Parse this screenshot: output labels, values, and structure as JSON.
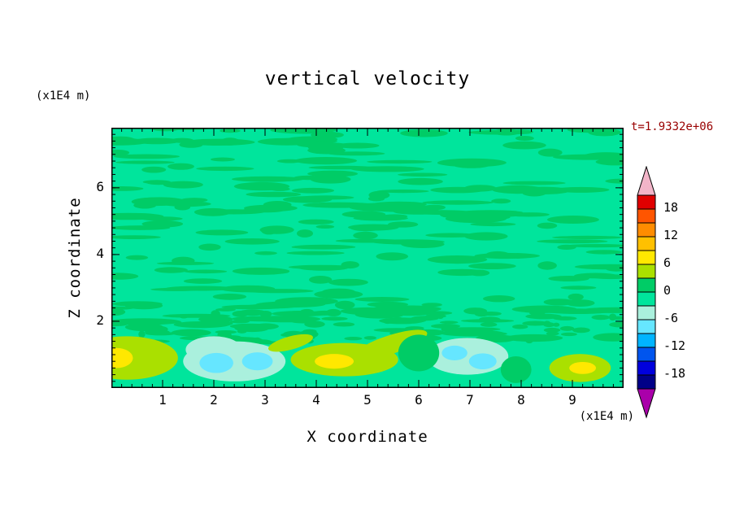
{
  "title": "vertical velocity",
  "time_label": "t=1.9332e+06",
  "time_color": "#990000",
  "axes": {
    "x_label": "X coordinate",
    "y_label": "Z coordinate",
    "x_unit": "(x1E4 m)",
    "y_unit": "(x1E4 m)",
    "x_ticks": [
      1,
      2,
      3,
      4,
      5,
      6,
      7,
      8,
      9
    ],
    "y_ticks": [
      2,
      4,
      6
    ],
    "x_minor_step": 0.2,
    "y_minor_step": 0.2
  },
  "colorbar": {
    "labels": [
      "18",
      "12",
      "6",
      "0",
      "-6",
      "-12",
      "-18"
    ],
    "band_colors": [
      "#e00000",
      "#ff5500",
      "#ff8c00",
      "#ffc000",
      "#ffe800",
      "#aae000",
      "#00cc66",
      "#00e59c",
      "#aaf0dd",
      "#66e6ff",
      "#00b4ff",
      "#0055ee",
      "#0000dd",
      "#000088"
    ],
    "arrow_top_color": "#f2b4c8",
    "arrow_bottom_color": "#aa00aa"
  },
  "chart_data": {
    "type": "filled-contour",
    "title": "vertical velocity",
    "xlabel": "X coordinate (x1E4 m)",
    "ylabel": "Z coordinate (x1E4 m)",
    "xlim": [
      0,
      10
    ],
    "ylim": [
      0,
      7.8
    ],
    "time_annotation": "t=1.9332e+06",
    "contour_levels": [
      -21,
      -18,
      -15,
      -12,
      -9,
      -6,
      -3,
      0,
      3,
      6,
      9,
      12,
      15,
      18,
      21
    ],
    "level_colors_top_to_bottom": [
      "#e00000",
      "#ff5500",
      "#ff8c00",
      "#ffc000",
      "#ffe800",
      "#aae000",
      "#00cc66",
      "#00e59c",
      "#aaf0dd",
      "#66e6ff",
      "#00b4ff",
      "#0055ee",
      "#0000dd",
      "#000088"
    ],
    "background_color": "#00e59c",
    "background_band": "-3 to 0",
    "speckle_color": "#00cc66",
    "speckle_band": "0 to 3",
    "texture": [
      {
        "seed": 11,
        "count": 235,
        "x": [
          0,
          10
        ],
        "z": [
          1.45,
          7.8
        ],
        "rx": [
          0.15,
          0.72
        ],
        "ry": [
          0.05,
          0.13
        ]
      },
      {
        "seed": 29,
        "count": 80,
        "x": [
          0,
          10
        ],
        "z": [
          1.35,
          2.35
        ],
        "rx": [
          0.06,
          0.28
        ],
        "ry": [
          0.04,
          0.11
        ]
      }
    ],
    "features": [
      {
        "name": "downdraft-pale",
        "x": 2.4,
        "z": 0.8,
        "rx": 1.0,
        "ry": 0.6,
        "color": "#aaf0dd",
        "band": "-3 to -6"
      },
      {
        "name": "downdraft-pale",
        "x": 2.0,
        "z": 1.15,
        "rx": 0.55,
        "ry": 0.4,
        "color": "#aaf0dd",
        "band": "-3 to -6"
      },
      {
        "name": "downdraft-pale",
        "x": 6.95,
        "z": 0.95,
        "rx": 0.8,
        "ry": 0.55,
        "color": "#aaf0dd",
        "band": "-3 to -6"
      },
      {
        "name": "updraft-weak",
        "x": 0.3,
        "z": 0.9,
        "rx": 1.0,
        "ry": 0.65,
        "color": "#aae000",
        "band": "3 to 6"
      },
      {
        "name": "updraft-weak",
        "x": 4.55,
        "z": 0.85,
        "rx": 1.05,
        "ry": 0.5,
        "color": "#aae000",
        "band": "3 to 6"
      },
      {
        "name": "updraft-weak",
        "x": 5.45,
        "z": 1.3,
        "rx": 0.75,
        "ry": 0.28,
        "rot": -18,
        "color": "#aae000",
        "band": "3 to 6"
      },
      {
        "name": "updraft-weak",
        "x": 3.5,
        "z": 1.35,
        "rx": 0.45,
        "ry": 0.2,
        "rot": -15,
        "color": "#aae000",
        "band": "3 to 6"
      },
      {
        "name": "updraft-weak",
        "x": 9.15,
        "z": 0.6,
        "rx": 0.6,
        "ry": 0.42,
        "color": "#aae000",
        "band": "3 to 6"
      },
      {
        "name": "downdraft-core",
        "x": 2.05,
        "z": 0.75,
        "rx": 0.33,
        "ry": 0.3,
        "color": "#66e6ff",
        "band": "-6 to -9"
      },
      {
        "name": "downdraft-core",
        "x": 2.85,
        "z": 0.8,
        "rx": 0.3,
        "ry": 0.27,
        "color": "#66e6ff",
        "band": "-6 to -9"
      },
      {
        "name": "downdraft-core",
        "x": 6.7,
        "z": 1.05,
        "rx": 0.25,
        "ry": 0.22,
        "color": "#66e6ff",
        "band": "-6 to -9"
      },
      {
        "name": "downdraft-core",
        "x": 7.25,
        "z": 0.8,
        "rx": 0.27,
        "ry": 0.24,
        "color": "#66e6ff",
        "band": "-6 to -9"
      },
      {
        "name": "updraft-core",
        "x": 0.1,
        "z": 0.9,
        "rx": 0.32,
        "ry": 0.3,
        "color": "#ffe800",
        "band": "6 to 9"
      },
      {
        "name": "updraft-core",
        "x": 4.35,
        "z": 0.8,
        "rx": 0.38,
        "ry": 0.22,
        "color": "#ffe800",
        "band": "6 to 9"
      },
      {
        "name": "updraft-core",
        "x": 9.2,
        "z": 0.6,
        "rx": 0.26,
        "ry": 0.18,
        "color": "#ffe800",
        "band": "6 to 9"
      },
      {
        "name": "speckle-blob",
        "x": 6.0,
        "z": 1.05,
        "rx": 0.4,
        "ry": 0.55,
        "color": "#00cc66",
        "band": "0 to 3"
      },
      {
        "name": "speckle-blob",
        "x": 7.9,
        "z": 0.55,
        "rx": 0.3,
        "ry": 0.4,
        "color": "#00cc66",
        "band": "0 to 3"
      }
    ]
  }
}
